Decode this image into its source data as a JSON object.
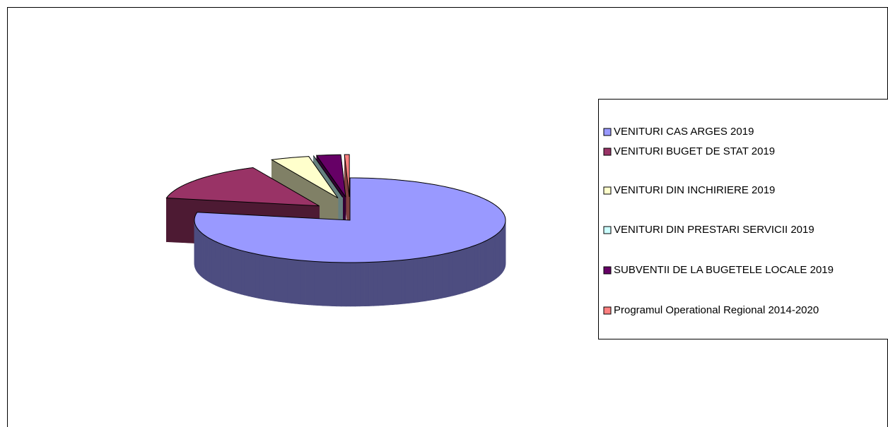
{
  "chart_data": {
    "type": "pie3d",
    "categories": [
      "VENITURI CAS ARGES 2019",
      "VENITURI BUGET DE STAT 2019",
      "VENITURI DIN INCHIRIERE 2019",
      "VENITURI DIN PRESTARI SERVICII 2019",
      "SUBVENTII DE LA BUGETELE LOCALE 2019",
      "Programul Operational Regional 2014-2020"
    ],
    "values": [
      78,
      15,
      4,
      0,
      2.5,
      0.5
    ],
    "colors": [
      "#9999ff",
      "#993366",
      "#ffffcc",
      "#ccffff",
      "#660066",
      "#ff8080"
    ],
    "legend": "right"
  }
}
